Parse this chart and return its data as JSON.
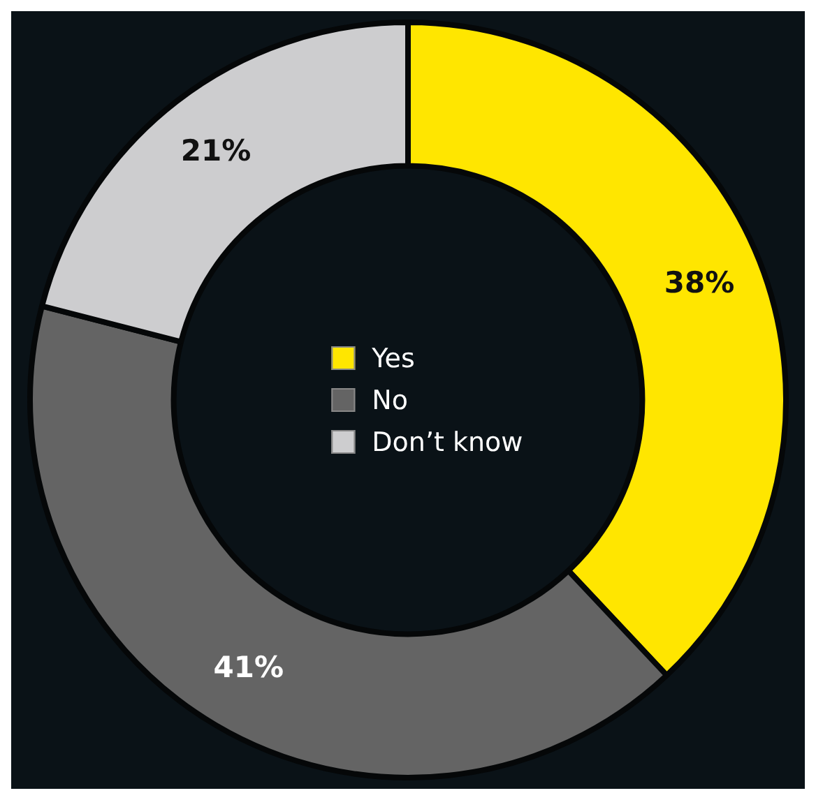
{
  "chart_data": {
    "type": "donut",
    "categories": [
      "Yes",
      "No",
      "Don’t know"
    ],
    "values": [
      38,
      41,
      21
    ],
    "value_labels": [
      "38%",
      "41%",
      "21%"
    ],
    "colors": [
      "#ffe600",
      "#646464",
      "#cdcdcf"
    ],
    "legend": "center"
  }
}
